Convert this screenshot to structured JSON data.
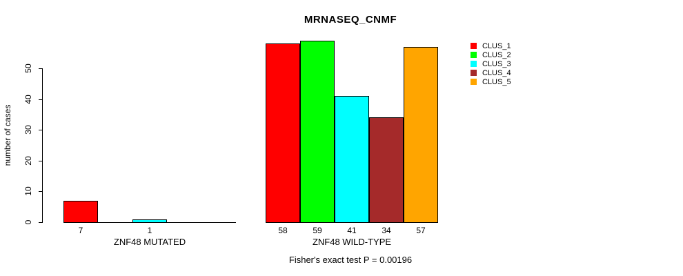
{
  "chart_data": {
    "type": "bar",
    "title": "MRNASEQ_CNMF",
    "ylabel": "number of cases",
    "xlabel": "",
    "ylim": [
      0,
      59
    ],
    "yticks": [
      "0",
      "10",
      "20",
      "30",
      "40",
      "50"
    ],
    "grid": false,
    "legend_position": "right",
    "categories": [
      "ZNF48 MUTATED",
      "ZNF48 WILD-TYPE"
    ],
    "series": [
      {
        "name": "CLUS_1",
        "color": "#FF0000",
        "values": [
          7,
          58
        ]
      },
      {
        "name": "CLUS_2",
        "color": "#00FF00",
        "values": [
          0,
          59
        ]
      },
      {
        "name": "CLUS_3",
        "color": "#00FFFF",
        "values": [
          1,
          41
        ]
      },
      {
        "name": "CLUS_4",
        "color": "#A52A2A",
        "values": [
          0,
          34
        ]
      },
      {
        "name": "CLUS_5",
        "color": "#FFA500",
        "values": [
          0,
          57
        ]
      }
    ],
    "bar_labels": [
      [
        "7",
        "",
        "1",
        "",
        ""
      ],
      [
        "58",
        "59",
        "41",
        "34",
        "57"
      ]
    ],
    "annotation": "Fisher's exact test P = 0.00196"
  }
}
